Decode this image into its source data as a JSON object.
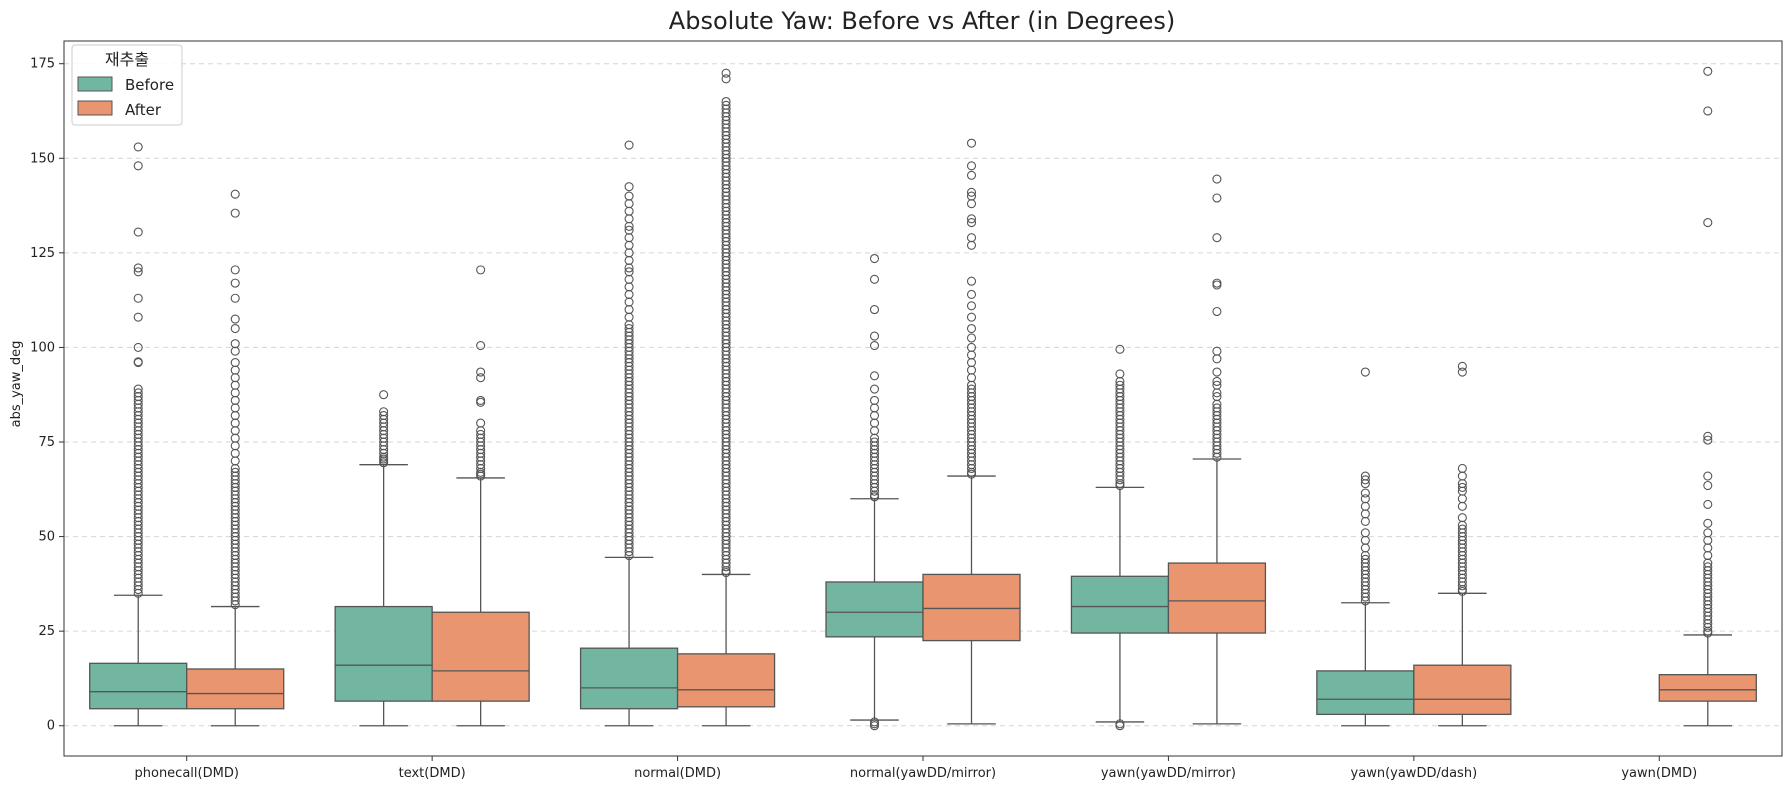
{
  "chart_data": {
    "type": "box",
    "title": "Absolute Yaw: Before vs After (in Degrees)",
    "xlabel": "",
    "ylabel": "abs_yaw_deg",
    "ylim": [
      -8,
      181
    ],
    "yticks": [
      0,
      25,
      50,
      75,
      100,
      125,
      150,
      175
    ],
    "grid": "horizontal-dashed",
    "legend": {
      "title": "재추출",
      "placement": "top-left"
    },
    "categories": [
      "phonecall(DMD)",
      "text(DMD)",
      "normal(DMD)",
      "normal(yawDD/mirror)",
      "yawn(yawDD/mirror)",
      "yawn(yawDD/dash)",
      "yawn(DMD)"
    ],
    "series": [
      {
        "name": "Before",
        "color": "#72b6a1",
        "boxes": [
          {
            "category": "phonecall(DMD)",
            "whislo": 0,
            "q1": 4.5,
            "med": 9,
            "q3": 16.5,
            "whishi": 34.5,
            "outliers": [
              35,
              36,
              37,
              38,
              39,
              40,
              41,
              42,
              43,
              44,
              45,
              46,
              47,
              48,
              49,
              50,
              51,
              52,
              53,
              54,
              55,
              56,
              57,
              58,
              59,
              60,
              61,
              62,
              63,
              64,
              65,
              66,
              67,
              68,
              69,
              70,
              71,
              72,
              73,
              74,
              75,
              76,
              77,
              78,
              79,
              80,
              81,
              82,
              83,
              84,
              85,
              86,
              87,
              88,
              89,
              96,
              96.2,
              100,
              108,
              113,
              120,
              121,
              130.5,
              148,
              153
            ]
          },
          {
            "category": "text(DMD)",
            "whislo": 0,
            "q1": 6.5,
            "med": 16,
            "q3": 31.5,
            "whishi": 69,
            "outliers": [
              69.5,
              70,
              70.5,
              71,
              72,
              73,
              74,
              75,
              76,
              77,
              78,
              79,
              80,
              81,
              82,
              83,
              87.5
            ]
          },
          {
            "category": "normal(DMD)",
            "whislo": 0,
            "q1": 4.5,
            "med": 10,
            "q3": 20.5,
            "whishi": 44.5,
            "outliers": [
              45,
              46,
              47,
              48,
              49,
              50,
              51,
              52,
              53,
              54,
              55,
              56,
              57,
              58,
              59,
              60,
              61,
              62,
              63,
              64,
              65,
              66,
              67,
              68,
              69,
              70,
              71,
              72,
              73,
              74,
              75,
              76,
              77,
              78,
              79,
              80,
              81,
              82,
              83,
              84,
              85,
              86,
              87,
              88,
              89,
              90,
              91,
              92,
              93,
              94,
              95,
              96,
              97,
              98,
              99,
              100,
              101,
              102,
              103,
              104,
              105,
              106,
              108,
              110,
              112,
              114,
              116,
              118,
              120,
              121,
              123,
              125,
              127,
              129,
              131,
              132,
              134,
              136,
              138,
              140,
              142.5,
              153.5
            ]
          },
          {
            "category": "normal(yawDD/mirror)",
            "whislo": 1.5,
            "q1": 23.5,
            "med": 30,
            "q3": 38,
            "whishi": 60,
            "outliers": [
              0,
              0.5,
              1,
              60.5,
              61,
              62,
              63,
              64,
              65,
              66,
              67,
              68,
              69,
              70,
              71,
              72,
              73,
              74,
              75,
              76,
              78,
              80,
              82,
              84,
              86,
              89,
              92.5,
              100.5,
              103,
              110,
              118,
              123.5
            ]
          },
          {
            "category": "yawn(yawDD/mirror)",
            "whislo": 1,
            "q1": 24.5,
            "med": 31.5,
            "q3": 39.5,
            "whishi": 63,
            "outliers": [
              0,
              0.5,
              63.5,
              64,
              65,
              66,
              67,
              68,
              69,
              70,
              71,
              72,
              73,
              74,
              75,
              76,
              77,
              78,
              79,
              80,
              81,
              82,
              83,
              84,
              85,
              86,
              87,
              88,
              89,
              90,
              91,
              93,
              99.5
            ]
          },
          {
            "category": "yawn(yawDD/dash)",
            "whislo": 0,
            "q1": 3,
            "med": 7,
            "q3": 14.5,
            "whishi": 32.5,
            "outliers": [
              33,
              34,
              35,
              36,
              37,
              38,
              39,
              40,
              41,
              42,
              43,
              44,
              45,
              47,
              49,
              51,
              54,
              56,
              58,
              60,
              61.5,
              64,
              65,
              66,
              93.5
            ]
          }
        ]
      },
      {
        "name": "After",
        "color": "#e9956f",
        "boxes": [
          {
            "category": "phonecall(DMD)",
            "whislo": 0,
            "q1": 4.5,
            "med": 8.5,
            "q3": 15,
            "whishi": 31.5,
            "outliers": [
              32,
              33,
              34,
              35,
              36,
              37,
              38,
              39,
              40,
              41,
              42,
              43,
              44,
              45,
              46,
              47,
              48,
              49,
              50,
              51,
              52,
              53,
              54,
              55,
              56,
              57,
              58,
              59,
              60,
              61,
              62,
              63,
              64,
              65,
              66,
              67,
              68,
              70,
              72,
              74,
              76,
              78,
              80,
              82,
              84,
              86,
              88,
              90,
              92,
              94,
              96,
              99,
              101,
              105,
              107.5,
              113,
              117,
              120.5,
              135.5,
              140.5
            ]
          },
          {
            "category": "text(DMD)",
            "whislo": 0,
            "q1": 6.5,
            "med": 14.5,
            "q3": 30,
            "whishi": 65.5,
            "outliers": [
              66,
              66.5,
              67,
              68,
              69,
              70,
              71,
              72,
              73,
              74,
              75,
              76,
              77,
              78,
              80,
              85.5,
              86,
              92,
              93.5,
              100.5,
              120.5
            ]
          },
          {
            "category": "normal(DMD)",
            "whislo": 0,
            "q1": 5,
            "med": 9.5,
            "q3": 19,
            "whishi": 40,
            "outliers": [
              40.5,
              41,
              42,
              43,
              44,
              45,
              46,
              47,
              48,
              49,
              50,
              51,
              52,
              53,
              54,
              55,
              56,
              57,
              58,
              59,
              60,
              61,
              62,
              63,
              64,
              65,
              66,
              67,
              68,
              69,
              70,
              71,
              72,
              73,
              74,
              75,
              76,
              77,
              78,
              79,
              80,
              81,
              82,
              83,
              84,
              85,
              86,
              87,
              88,
              89,
              90,
              91,
              92,
              93,
              94,
              95,
              96,
              97,
              98,
              99,
              100,
              101,
              102,
              103,
              104,
              105,
              106,
              107,
              108,
              109,
              110,
              111,
              112,
              113,
              114,
              115,
              116,
              117,
              118,
              119,
              120,
              121,
              122,
              123,
              124,
              125,
              126,
              127,
              128,
              129,
              130,
              131,
              132,
              133,
              134,
              135,
              136,
              137,
              138,
              139,
              140,
              141,
              142,
              143,
              144,
              145,
              146,
              147,
              148,
              149,
              150,
              151,
              152,
              153,
              154,
              155,
              156,
              157,
              158,
              159,
              160,
              161,
              162,
              163,
              164,
              165,
              171,
              172.5
            ]
          },
          {
            "category": "normal(yawDD/mirror)",
            "whislo": 0.5,
            "q1": 22.5,
            "med": 31,
            "q3": 40,
            "whishi": 66,
            "outliers": [
              66.5,
              67,
              68,
              69,
              70,
              71,
              72,
              73,
              74,
              75,
              76,
              77,
              78,
              79,
              80,
              81,
              82,
              83,
              84,
              85,
              86,
              87,
              88,
              89,
              90,
              92,
              94,
              96,
              98,
              100,
              102.5,
              105,
              108,
              111,
              114,
              117.5,
              127,
              129,
              133,
              134,
              138,
              140,
              141,
              145.5,
              148,
              154
            ]
          },
          {
            "category": "yawn(yawDD/mirror)",
            "whislo": 0.5,
            "q1": 24.5,
            "med": 33,
            "q3": 43,
            "whishi": 70.5,
            "outliers": [
              71,
              72,
              73,
              74,
              75,
              76,
              77,
              78,
              79,
              80,
              81,
              82,
              83,
              84,
              85,
              87,
              88,
              90,
              91,
              93.5,
              97,
              99,
              109.5,
              116.5,
              117,
              129,
              139.5,
              144.5
            ]
          },
          {
            "category": "yawn(yawDD/dash)",
            "whislo": 0,
            "q1": 3,
            "med": 7,
            "q3": 16,
            "whishi": 35,
            "outliers": [
              35.5,
              36,
              37,
              38,
              39,
              40,
              41,
              42,
              43,
              44,
              45,
              46,
              47,
              48,
              49,
              50,
              51,
              52,
              53,
              55,
              58,
              60,
              62,
              63,
              64,
              66,
              68,
              93.5,
              95
            ]
          },
          {
            "category": "yawn(DMD)",
            "whislo": 0,
            "q1": 6.5,
            "med": 9.5,
            "q3": 13.5,
            "whishi": 24,
            "outliers": [
              24.5,
              25,
              26,
              27,
              28,
              29,
              30,
              31,
              32,
              33,
              34,
              35,
              36,
              37,
              38,
              39,
              40,
              41,
              42,
              43,
              45,
              47,
              49,
              51,
              53.5,
              58.5,
              63.5,
              66,
              75.5,
              76.5,
              133,
              162.5,
              173
            ]
          }
        ]
      }
    ]
  }
}
